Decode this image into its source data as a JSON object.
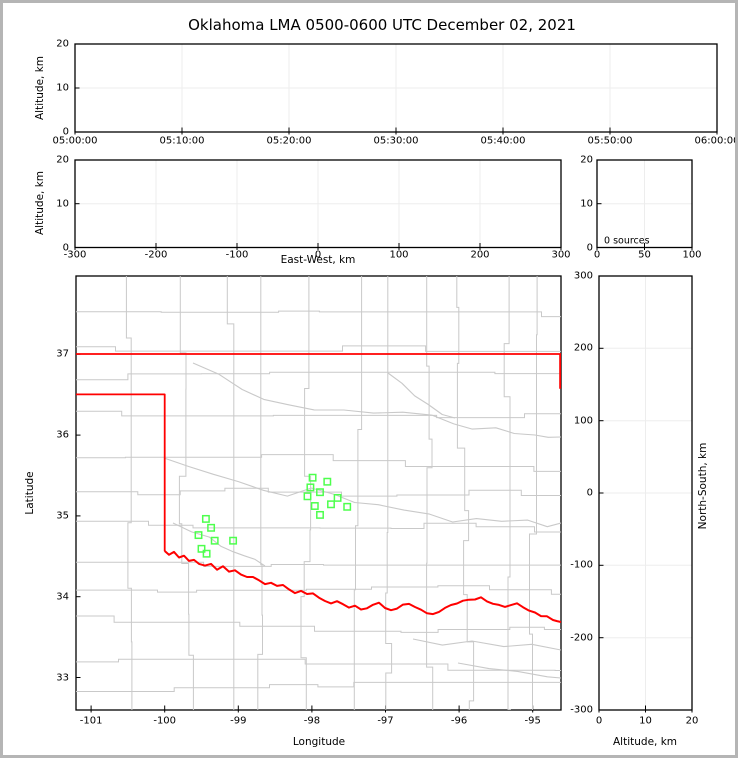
{
  "title": "Oklahoma LMA 0500-0600 UTC December 02, 2021",
  "panels": {
    "time_height": {
      "ylabel": "Altitude, km",
      "yticks": [
        "0",
        "10",
        "20"
      ],
      "xticks": [
        "05:00:00",
        "05:10:00",
        "05:20:00",
        "05:30:00",
        "05:40:00",
        "05:50:00",
        "06:00:00"
      ]
    },
    "ew_height": {
      "ylabel": "Altitude, km",
      "xlabel": "East-West, km",
      "yticks": [
        "0",
        "10",
        "20"
      ],
      "xticks": [
        "-300",
        "-200",
        "-100",
        "0",
        "100",
        "200",
        "300"
      ]
    },
    "histogram": {
      "annotation": "0 sources",
      "yticks": [
        "0",
        "10",
        "20"
      ],
      "xticks": [
        "0",
        "50",
        "100"
      ]
    },
    "map": {
      "xlabel": "Longitude",
      "ylabel": "Latitude",
      "xticks": [
        "-101",
        "-100",
        "-99",
        "-98",
        "-97",
        "-96",
        "-95"
      ],
      "yticks": [
        "33",
        "34",
        "35",
        "36",
        "37"
      ]
    },
    "ns_height": {
      "xlabel": "Altitude, km",
      "ylabel": "North-South, km",
      "xticks": [
        "0",
        "10",
        "20"
      ],
      "yticks": [
        "-300",
        "-200",
        "-100",
        "0",
        "100",
        "200",
        "300"
      ]
    }
  },
  "colors": {
    "source_marker": "#4dff4d",
    "state_border": "#ff0000",
    "county_line": "#c9c9c9",
    "gridline": "#ededed",
    "frame": "#000000"
  },
  "chart_data": {
    "type": "scatter",
    "title": "Oklahoma LMA 0500-0600 UTC December 02, 2021",
    "time_axis": {
      "start": "05:00:00",
      "end": "06:00:00",
      "tick_interval": "00:10:00"
    },
    "altitude_km_range": [
      0,
      20
    ],
    "east_west_km_range": [
      -300,
      300
    ],
    "north_south_km_range": [
      -300,
      300
    ],
    "map_lon_range": [
      -101.21,
      -94.62
    ],
    "map_lat_range": [
      32.58,
      37.97
    ],
    "source_count_label": "0 sources",
    "series": [
      {
        "name": "lma-sources",
        "marker": "open-square",
        "color": "#4dff4d",
        "points_lon_lat": [
          [
            -97.99,
            35.47
          ],
          [
            -97.79,
            35.42
          ],
          [
            -98.02,
            35.35
          ],
          [
            -97.89,
            35.29
          ],
          [
            -98.06,
            35.24
          ],
          [
            -97.65,
            35.22
          ],
          [
            -97.96,
            35.12
          ],
          [
            -97.74,
            35.14
          ],
          [
            -97.52,
            35.11
          ],
          [
            -97.89,
            35.01
          ],
          [
            -99.44,
            34.96
          ],
          [
            -99.37,
            34.85
          ],
          [
            -99.54,
            34.76
          ],
          [
            -99.32,
            34.69
          ],
          [
            -99.07,
            34.69
          ],
          [
            -99.5,
            34.59
          ],
          [
            -99.43,
            34.53
          ]
        ]
      }
    ],
    "map_overlays": {
      "oklahoma_border_color": "#ff0000",
      "north_border_lat": 37.0,
      "panhandle_lat": 36.5,
      "panhandle_west_lon": -100.0,
      "county_lines_color": "#c9c9c9"
    }
  }
}
